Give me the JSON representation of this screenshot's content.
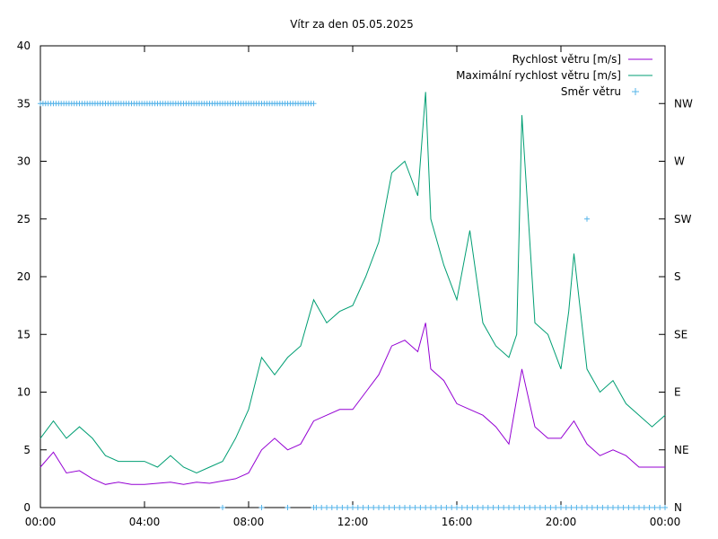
{
  "chart_data": {
    "type": "line",
    "title": "Vítr za den 05.05.2025",
    "xlabel": "",
    "ylabel": "",
    "x_ticks": [
      "00:00",
      "04:00",
      "08:00",
      "12:00",
      "16:00",
      "20:00",
      "00:00"
    ],
    "x_range_hours": [
      0,
      24
    ],
    "ylim": [
      0,
      40
    ],
    "y_ticks": [
      0,
      5,
      10,
      15,
      20,
      25,
      30,
      35,
      40
    ],
    "y2_ticks": [
      "N",
      "NE",
      "E",
      "SE",
      "S",
      "SW",
      "W",
      "NW"
    ],
    "y2_tick_values": [
      0,
      5,
      10,
      15,
      20,
      25,
      30,
      35
    ],
    "grid": false,
    "legend_position": "top-right",
    "series": [
      {
        "name": "Rychlost větru [m/s]",
        "color": "#9400d3",
        "axis": "y1",
        "x_hours": [
          0,
          0.5,
          1,
          1.5,
          2,
          2.5,
          3,
          3.5,
          4,
          4.5,
          5,
          5.5,
          6,
          6.5,
          7,
          7.5,
          8,
          8.5,
          9,
          9.5,
          10,
          10.5,
          11,
          11.5,
          12,
          12.5,
          13,
          13.5,
          14,
          14.5,
          14.8,
          15,
          15.5,
          16,
          16.5,
          17,
          17.5,
          18,
          18.5,
          19,
          19.5,
          20,
          20.5,
          21,
          21.5,
          22,
          22.5,
          23,
          23.5,
          24
        ],
        "values": [
          3.5,
          4.8,
          3.0,
          3.2,
          2.5,
          2.0,
          2.2,
          2.0,
          2.0,
          2.1,
          2.2,
          2.0,
          2.2,
          2.1,
          2.3,
          2.5,
          3.0,
          5.0,
          6.0,
          5.0,
          5.5,
          7.5,
          8.0,
          8.5,
          8.5,
          10.0,
          11.5,
          14.0,
          14.5,
          13.5,
          16.0,
          12.0,
          11.0,
          9.0,
          8.5,
          8.0,
          7.0,
          5.5,
          12.0,
          7.0,
          6.0,
          6.0,
          7.5,
          5.5,
          4.5,
          5.0,
          4.5,
          3.5,
          3.5,
          3.5
        ]
      },
      {
        "name": "Maximální rychlost větru [m/s]",
        "color": "#009e73",
        "axis": "y1",
        "x_hours": [
          0,
          0.5,
          1,
          1.5,
          2,
          2.5,
          3,
          3.5,
          4,
          4.5,
          5,
          5.5,
          6,
          6.5,
          7,
          7.5,
          8,
          8.5,
          9,
          9.5,
          10,
          10.5,
          11,
          11.5,
          12,
          12.5,
          13,
          13.5,
          14,
          14.5,
          14.8,
          15,
          15.5,
          16,
          16.5,
          17,
          17.5,
          18,
          18.3,
          18.5,
          19,
          19.5,
          20,
          20.3,
          20.5,
          21,
          21.5,
          22,
          22.5,
          23,
          23.5,
          24
        ],
        "values": [
          6.0,
          7.5,
          6.0,
          7.0,
          6.0,
          4.5,
          4.0,
          4.0,
          4.0,
          3.5,
          4.5,
          3.5,
          3.0,
          3.5,
          4.0,
          6.0,
          8.5,
          13.0,
          11.5,
          13.0,
          14.0,
          18.0,
          16.0,
          17.0,
          17.5,
          20.0,
          23.0,
          29.0,
          30.0,
          27.0,
          36.0,
          25.0,
          21.0,
          18.0,
          24.0,
          16.0,
          14.0,
          13.0,
          15.0,
          34.0,
          16.0,
          15.0,
          12.0,
          17.0,
          22.0,
          12.0,
          10.0,
          11.0,
          9.0,
          8.0,
          7.0,
          8.0
        ]
      },
      {
        "name": "Směr větru",
        "color": "#56b4e9",
        "axis": "y2",
        "marker": "+",
        "x_hours": [
          0,
          0.1,
          0.2,
          0.3,
          0.4,
          0.5,
          0.6,
          0.7,
          0.8,
          0.9,
          1.0,
          1.1,
          1.2,
          1.3,
          1.4,
          1.5,
          1.6,
          1.7,
          1.8,
          1.9,
          2.0,
          2.1,
          2.2,
          2.3,
          2.4,
          2.5,
          2.6,
          2.7,
          2.8,
          2.9,
          3.0,
          3.1,
          3.2,
          3.3,
          3.4,
          3.5,
          3.6,
          3.7,
          3.8,
          3.9,
          4.0,
          4.1,
          4.2,
          4.3,
          4.4,
          4.5,
          4.6,
          4.7,
          4.8,
          4.9,
          5.0,
          5.1,
          5.2,
          5.3,
          5.4,
          5.5,
          5.6,
          5.7,
          5.8,
          5.9,
          6.0,
          6.1,
          6.2,
          6.3,
          6.4,
          6.5,
          6.6,
          6.7,
          6.8,
          6.9,
          7.0,
          7.1,
          7.2,
          7.3,
          7.4,
          7.5,
          7.6,
          7.7,
          7.8,
          7.9,
          8.0,
          8.1,
          8.2,
          8.3,
          8.4,
          8.5,
          8.6,
          8.7,
          8.8,
          8.9,
          9.0,
          9.1,
          9.2,
          9.3,
          9.4,
          9.5,
          9.6,
          9.7,
          9.8,
          9.9,
          10.0,
          10.1,
          10.2,
          10.3,
          10.4,
          10.5,
          7.0,
          8.5,
          9.5,
          10.5,
          10.6,
          10.8,
          11.0,
          11.2,
          11.4,
          11.6,
          11.8,
          12.0,
          12.2,
          12.4,
          12.6,
          12.8,
          13.0,
          13.2,
          13.4,
          13.6,
          13.8,
          14.0,
          14.2,
          14.4,
          14.6,
          14.8,
          15.0,
          15.2,
          15.4,
          15.6,
          15.8,
          16.0,
          16.2,
          16.4,
          16.6,
          16.8,
          17.0,
          17.2,
          17.4,
          17.6,
          17.8,
          18.0,
          18.2,
          18.4,
          18.6,
          18.8,
          19.0,
          19.2,
          19.4,
          19.6,
          19.8,
          20.0,
          20.2,
          20.4,
          20.6,
          20.8,
          21.0,
          21.2,
          21.4,
          21.6,
          21.8,
          22.0,
          22.2,
          22.4,
          22.6,
          22.8,
          23.0,
          23.2,
          23.4,
          23.6,
          23.8,
          24.0,
          21.0
        ],
        "values": [
          35,
          35,
          35,
          35,
          35,
          35,
          35,
          35,
          35,
          35,
          35,
          35,
          35,
          35,
          35,
          35,
          35,
          35,
          35,
          35,
          35,
          35,
          35,
          35,
          35,
          35,
          35,
          35,
          35,
          35,
          35,
          35,
          35,
          35,
          35,
          35,
          35,
          35,
          35,
          35,
          35,
          35,
          35,
          35,
          35,
          35,
          35,
          35,
          35,
          35,
          35,
          35,
          35,
          35,
          35,
          35,
          35,
          35,
          35,
          35,
          35,
          35,
          35,
          35,
          35,
          35,
          35,
          35,
          35,
          35,
          35,
          35,
          35,
          35,
          35,
          35,
          35,
          35,
          35,
          35,
          35,
          35,
          35,
          35,
          35,
          35,
          35,
          35,
          35,
          35,
          35,
          35,
          35,
          35,
          35,
          35,
          35,
          35,
          35,
          35,
          35,
          35,
          35,
          35,
          35,
          35,
          0,
          0,
          0,
          0,
          0,
          0,
          0,
          0,
          0,
          0,
          0,
          0,
          0,
          0,
          0,
          0,
          0,
          0,
          0,
          0,
          0,
          0,
          0,
          0,
          0,
          0,
          0,
          0,
          0,
          0,
          0,
          0,
          0,
          0,
          0,
          0,
          0,
          0,
          0,
          0,
          0,
          0,
          0,
          0,
          0,
          0,
          0,
          0,
          0,
          0,
          0,
          0,
          0,
          0,
          0,
          0,
          0,
          0,
          0,
          0,
          0,
          0,
          0,
          0,
          0,
          0,
          0,
          0,
          0,
          0,
          0,
          0,
          25
        ]
      }
    ]
  }
}
